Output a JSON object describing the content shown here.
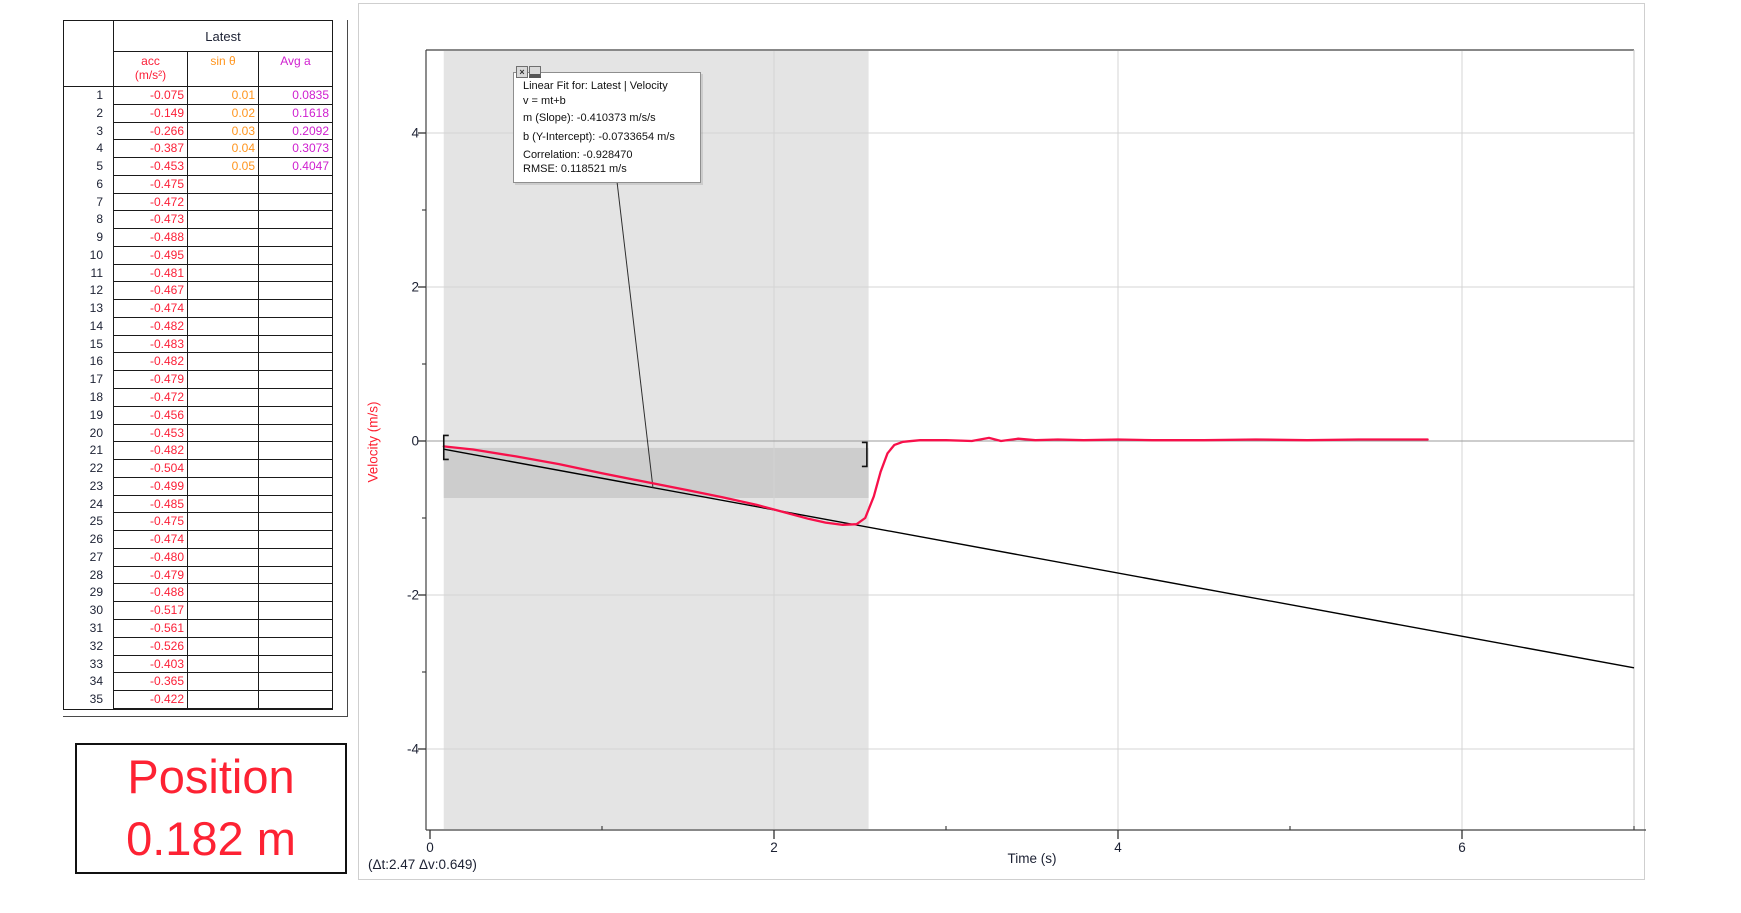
{
  "table": {
    "group_header": "Latest",
    "columns": [
      {
        "key": "acc",
        "label": "acc",
        "unit": "(m/s²)",
        "color": "red"
      },
      {
        "key": "sin",
        "label": "sin θ",
        "unit": "",
        "color": "orange"
      },
      {
        "key": "avg",
        "label": "Avg a",
        "unit": "",
        "color": "magenta"
      }
    ],
    "rows": [
      [
        "1",
        "-0.075",
        "0.01",
        "0.0835"
      ],
      [
        "2",
        "-0.149",
        "0.02",
        "0.1618"
      ],
      [
        "3",
        "-0.266",
        "0.03",
        "0.2092"
      ],
      [
        "4",
        "-0.387",
        "0.04",
        "0.3073"
      ],
      [
        "5",
        "-0.453",
        "0.05",
        "0.4047"
      ],
      [
        "6",
        "-0.475",
        "",
        ""
      ],
      [
        "7",
        "-0.472",
        "",
        ""
      ],
      [
        "8",
        "-0.473",
        "",
        ""
      ],
      [
        "9",
        "-0.488",
        "",
        ""
      ],
      [
        "10",
        "-0.495",
        "",
        ""
      ],
      [
        "11",
        "-0.481",
        "",
        ""
      ],
      [
        "12",
        "-0.467",
        "",
        ""
      ],
      [
        "13",
        "-0.474",
        "",
        ""
      ],
      [
        "14",
        "-0.482",
        "",
        ""
      ],
      [
        "15",
        "-0.483",
        "",
        ""
      ],
      [
        "16",
        "-0.482",
        "",
        ""
      ],
      [
        "17",
        "-0.479",
        "",
        ""
      ],
      [
        "18",
        "-0.472",
        "",
        ""
      ],
      [
        "19",
        "-0.456",
        "",
        ""
      ],
      [
        "20",
        "-0.453",
        "",
        ""
      ],
      [
        "21",
        "-0.482",
        "",
        ""
      ],
      [
        "22",
        "-0.504",
        "",
        ""
      ],
      [
        "23",
        "-0.499",
        "",
        ""
      ],
      [
        "24",
        "-0.485",
        "",
        ""
      ],
      [
        "25",
        "-0.475",
        "",
        ""
      ],
      [
        "26",
        "-0.474",
        "",
        ""
      ],
      [
        "27",
        "-0.480",
        "",
        ""
      ],
      [
        "28",
        "-0.479",
        "",
        ""
      ],
      [
        "29",
        "-0.488",
        "",
        ""
      ],
      [
        "30",
        "-0.517",
        "",
        ""
      ],
      [
        "31",
        "-0.561",
        "",
        ""
      ],
      [
        "32",
        "-0.526",
        "",
        ""
      ],
      [
        "33",
        "-0.403",
        "",
        ""
      ],
      [
        "34",
        "-0.365",
        "",
        ""
      ],
      [
        "35",
        "-0.422",
        "",
        ""
      ]
    ]
  },
  "position_display": {
    "label": "Position",
    "value": "0.182 m"
  },
  "graph": {
    "status_text": "(Δt:2.47 Δv:0.649)",
    "annotation": {
      "close_icon": "×",
      "lines": [
        "Linear Fit for: Latest | Velocity",
        "v = mt+b",
        "m (Slope): -0.410373 m/s/s",
        "b (Y-Intercept): -0.0733654 m/s",
        "Correlation: -0.928470",
        "RMSE: 0.118521 m/s"
      ]
    }
  },
  "chart_data": {
    "type": "line",
    "title": "",
    "xlabel": "Time (s)",
    "ylabel": "Velocity (m/s)",
    "xlim": [
      0,
      7.07
    ],
    "ylim": [
      -5.05,
      5.05
    ],
    "grid": true,
    "x_major_ticks": [
      0,
      2,
      4,
      6
    ],
    "x_minor_ticks": [
      1,
      3,
      5,
      7
    ],
    "y_major_ticks": [
      4,
      2,
      0,
      -2,
      -4
    ],
    "y_minor_ticks": [
      3,
      1,
      -1,
      -3
    ],
    "selected_region": {
      "t_start": 0.08,
      "t_end": 2.55,
      "v_top": -0.09,
      "v_bottom": -0.74,
      "delta_t": 2.47,
      "delta_v": 0.649
    },
    "fit": {
      "equation": "v = mt+b",
      "slope": -0.410373,
      "intercept": -0.0733654,
      "correlation": -0.92847,
      "rmse": 0.118521,
      "t_start": 0.08,
      "t_end": 7.0
    },
    "brackets": [
      {
        "t": 0.08,
        "v": -0.084
      },
      {
        "t": 2.54,
        "v": -0.175
      }
    ],
    "series": [
      {
        "name": "Latest | Velocity",
        "color": "#f7104a",
        "points": [
          [
            0.08,
            -0.07
          ],
          [
            0.25,
            -0.11
          ],
          [
            0.5,
            -0.2
          ],
          [
            0.75,
            -0.3
          ],
          [
            1.0,
            -0.42
          ],
          [
            1.25,
            -0.53
          ],
          [
            1.5,
            -0.64
          ],
          [
            1.7,
            -0.73
          ],
          [
            1.9,
            -0.83
          ],
          [
            2.0,
            -0.89
          ],
          [
            2.1,
            -0.95
          ],
          [
            2.2,
            -1.01
          ],
          [
            2.3,
            -1.06
          ],
          [
            2.4,
            -1.09
          ],
          [
            2.48,
            -1.08
          ],
          [
            2.53,
            -1.0
          ],
          [
            2.58,
            -0.72
          ],
          [
            2.62,
            -0.4
          ],
          [
            2.66,
            -0.16
          ],
          [
            2.7,
            -0.05
          ],
          [
            2.75,
            -0.01
          ],
          [
            2.85,
            0.01
          ],
          [
            3.0,
            0.01
          ],
          [
            3.15,
            0.0
          ],
          [
            3.25,
            0.04
          ],
          [
            3.32,
            0.0
          ],
          [
            3.42,
            0.03
          ],
          [
            3.52,
            0.01
          ],
          [
            3.65,
            0.02
          ],
          [
            3.8,
            0.01
          ],
          [
            4.0,
            0.02
          ],
          [
            4.2,
            0.01
          ],
          [
            4.5,
            0.01
          ],
          [
            4.8,
            0.02
          ],
          [
            5.1,
            0.01
          ],
          [
            5.4,
            0.02
          ],
          [
            5.8,
            0.02
          ]
        ]
      }
    ]
  }
}
